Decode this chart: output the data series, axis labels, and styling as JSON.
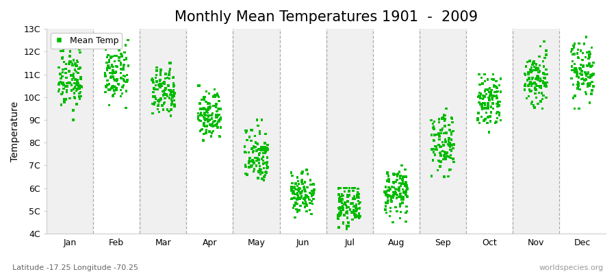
{
  "title": "Monthly Mean Temperatures 1901  -  2009",
  "ylabel": "Temperature",
  "xlabel": "",
  "subtitle": "Latitude -17.25 Longitude -70.25",
  "watermark": "worldspecies.org",
  "legend_label": "Mean Temp",
  "marker": "s",
  "marker_color": "#00bb00",
  "marker_size": 2.5,
  "ylim": [
    4,
    13
  ],
  "yticks": [
    4,
    5,
    6,
    7,
    8,
    9,
    10,
    11,
    12,
    13
  ],
  "ytick_labels": [
    "4C",
    "5C",
    "6C",
    "7C",
    "8C",
    "9C",
    "10C",
    "11C",
    "12C",
    "13C"
  ],
  "months": [
    "Jan",
    "Feb",
    "Mar",
    "Apr",
    "May",
    "Jun",
    "Jul",
    "Aug",
    "Sep",
    "Oct",
    "Nov",
    "Dec"
  ],
  "month_means": [
    10.8,
    11.0,
    10.2,
    9.2,
    7.5,
    5.8,
    5.2,
    5.8,
    8.0,
    9.8,
    10.8,
    11.2
  ],
  "month_stds": [
    0.7,
    0.6,
    0.55,
    0.55,
    0.65,
    0.45,
    0.4,
    0.5,
    0.65,
    0.65,
    0.65,
    0.65
  ],
  "month_mins": [
    9.0,
    9.5,
    8.8,
    7.8,
    6.2,
    4.5,
    4.2,
    4.5,
    6.5,
    8.2,
    9.5,
    9.5
  ],
  "month_maxs": [
    12.8,
    12.5,
    11.5,
    10.5,
    9.0,
    6.8,
    6.0,
    7.0,
    9.5,
    11.0,
    12.5,
    12.8
  ],
  "n_years": 109,
  "bg_color_odd": "#f0f0f0",
  "bg_color_even": "#ffffff",
  "title_fontsize": 15,
  "axis_fontsize": 10,
  "tick_fontsize": 9,
  "dashed_line_color": "#888888"
}
